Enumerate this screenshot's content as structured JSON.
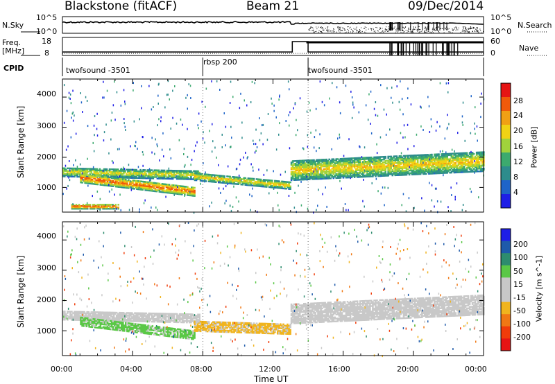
{
  "header": {
    "title": "Blackstone (fitACF)",
    "beam": "Beam 21",
    "date": "09/Dec/2014"
  },
  "side_labels": {
    "nsky": "N.Sky",
    "nsearch": "N.Search",
    "freq": "Freq.",
    "freq_unit": "[MHz]",
    "nave": "Nave",
    "cpid": "CPID"
  },
  "top_axes": {
    "nsky_ticks": [
      "10^5",
      "10^0"
    ],
    "nsearch_ticks": [
      "10^5",
      "10^0"
    ],
    "freq_ticks": [
      "18",
      "8"
    ],
    "nave_ticks": [
      "60",
      "0"
    ]
  },
  "cpid": [
    {
      "label": "twofsound -3501",
      "start_hour": 0
    },
    {
      "label": "rbsp 200",
      "start_hour": 8
    },
    {
      "label": "twofsound -3501",
      "start_hour": 14
    }
  ],
  "colors": {
    "power_scale": [
      "#1e1ee6",
      "#1e64c8",
      "#2d8c8c",
      "#3caa6e",
      "#a0d23c",
      "#f0d214",
      "#f0a014",
      "#f05a0a",
      "#e61414"
    ],
    "velocity_scale": [
      "#1e1ee6",
      "#1e5aaa",
      "#2d8c6e",
      "#5ac846",
      "#c8c8c8",
      "#c8c8c8",
      "#f0b41e",
      "#f07814",
      "#f03c0a",
      "#e61414"
    ]
  },
  "chart_data": [
    {
      "type": "heatmap",
      "title": "Power",
      "xlabel": "Time UT",
      "ylabel": "Slant Range [km]",
      "x_ticks": [
        "00:00",
        "04:00",
        "08:00",
        "12:00",
        "16:00",
        "20:00",
        "00:00"
      ],
      "xlim_hours": [
        0,
        24
      ],
      "y_ticks": [
        "1000",
        "2000",
        "3000",
        "4000"
      ],
      "ylim_km": [
        180,
        4600
      ],
      "colorbar_label": "Power [dB]",
      "colorbar_ticks": [
        "4",
        "8",
        "12",
        "16",
        "20",
        "24",
        "28"
      ],
      "colorbar_range": [
        0,
        30
      ],
      "bands": [
        {
          "t_start": 0.0,
          "t_end": 7.8,
          "r_center_start": 1500,
          "r_center_end": 1400,
          "width": 300,
          "level": 18
        },
        {
          "t_start": 1.0,
          "t_end": 7.5,
          "r_center_start": 1300,
          "r_center_end": 850,
          "width": 300,
          "level": 26
        },
        {
          "t_start": 0.5,
          "t_end": 3.2,
          "r_center_start": 350,
          "r_center_end": 350,
          "width": 150,
          "level": 28
        },
        {
          "t_start": 7.5,
          "t_end": 13.0,
          "r_center_start": 1350,
          "r_center_end": 1050,
          "width": 250,
          "level": 20
        },
        {
          "t_start": 13.0,
          "t_end": 24.0,
          "r_center_start": 1550,
          "r_center_end": 1850,
          "width": 650,
          "level": 20
        }
      ]
    },
    {
      "type": "heatmap",
      "title": "Velocity",
      "xlabel": "Time UT",
      "ylabel": "Slant Range [km]",
      "x_ticks": [
        "00:00",
        "04:00",
        "08:00",
        "12:00",
        "16:00",
        "20:00",
        "00:00"
      ],
      "xlim_hours": [
        0,
        24
      ],
      "y_ticks": [
        "1000",
        "2000",
        "3000",
        "4000"
      ],
      "ylim_km": [
        180,
        4600
      ],
      "colorbar_label": "Velocity [m s^-1]",
      "colorbar_ticks": [
        "200",
        "100",
        "50",
        "15",
        "-15",
        "-50",
        "-100",
        "-200"
      ],
      "colorbar_range": [
        -250,
        250
      ],
      "bands": [
        {
          "t_start": 0.0,
          "t_end": 7.8,
          "r_center_start": 1500,
          "r_center_end": 1400,
          "width": 300,
          "level": 0
        },
        {
          "t_start": 1.0,
          "t_end": 7.5,
          "r_center_start": 1300,
          "r_center_end": 850,
          "width": 300,
          "level": 60
        },
        {
          "t_start": 7.5,
          "t_end": 13.0,
          "r_center_start": 1150,
          "r_center_end": 1050,
          "width": 350,
          "level": -60
        },
        {
          "t_start": 13.0,
          "t_end": 24.0,
          "r_center_start": 1550,
          "r_center_end": 1850,
          "width": 650,
          "level": 0
        }
      ]
    }
  ]
}
